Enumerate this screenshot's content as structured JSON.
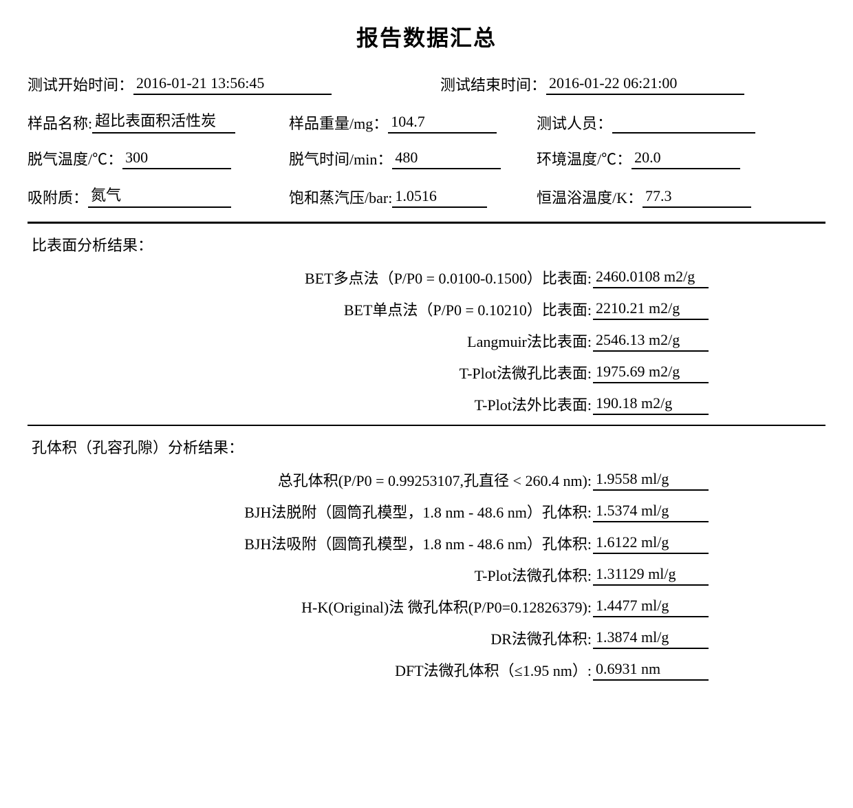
{
  "title": "报告数据汇总",
  "meta": {
    "start_time_label": "测试开始时间：",
    "start_time": " 2016-01-21 13:56:45 ",
    "end_time_label": "测试结束时间：",
    "end_time": "2016-01-22 06:21:00",
    "sample_name_label": "样品名称:",
    "sample_name": "超比表面积活性炭",
    "sample_weight_label": "样品重量/mg：",
    "sample_weight": "104.7",
    "tester_label": "测试人员：",
    "tester": " ",
    "degas_temp_label": "脱气温度/℃：",
    "degas_temp": "300",
    "degas_time_label": "脱气时间/min：",
    "degas_time": "480",
    "env_temp_label": "环境温度/℃：",
    "env_temp": "20.0",
    "adsorbate_label": "吸附质：",
    "adsorbate": "氮气",
    "sat_vp_label": "饱和蒸汽压/bar:",
    "sat_vp": "1.0516",
    "bath_temp_label": "恒温浴温度/K：",
    "bath_temp": " 77.3"
  },
  "surface": {
    "section_title": "比表面分析结果：",
    "rows": [
      {
        "label": "BET多点法（P/P0 = 0.0100-0.1500）比表面:",
        "value": "2460.0108 m2/g"
      },
      {
        "label": "BET单点法（P/P0 = 0.10210）比表面:",
        "value": "2210.21 m2/g"
      },
      {
        "label": "Langmuir法比表面:",
        "value": "2546.13 m2/g"
      },
      {
        "label": "T-Plot法微孔比表面:",
        "value": "1975.69 m2/g"
      },
      {
        "label": "T-Plot法外比表面:",
        "value": "190.18 m2/g"
      }
    ]
  },
  "pore": {
    "section_title": "孔体积（孔容孔隙）分析结果：",
    "rows": [
      {
        "label": "总孔体积(P/P0 = 0.99253107,孔直径 < 260.4 nm):",
        "value": "1.9558 ml/g"
      },
      {
        "label": "BJH法脱附（圆筒孔模型，1.8 nm - 48.6 nm）孔体积:",
        "value": "1.5374 ml/g"
      },
      {
        "label": "BJH法吸附（圆筒孔模型，1.8 nm - 48.6 nm）孔体积:",
        "value": "1.6122 ml/g"
      },
      {
        "label": "T-Plot法微孔体积:",
        "value": "1.31129 ml/g"
      },
      {
        "label": "H-K(Original)法 微孔体积(P/P0=0.12826379):",
        "value": "1.4477 ml/g"
      },
      {
        "label": "DR法微孔体积:",
        "value": "1.3874 ml/g"
      },
      {
        "label": "DFT法微孔体积（≤1.95 nm）:",
        "value": "0.6931 nm"
      }
    ]
  },
  "layout": {
    "surface_label_width": 820,
    "pore_label_width": 820
  }
}
